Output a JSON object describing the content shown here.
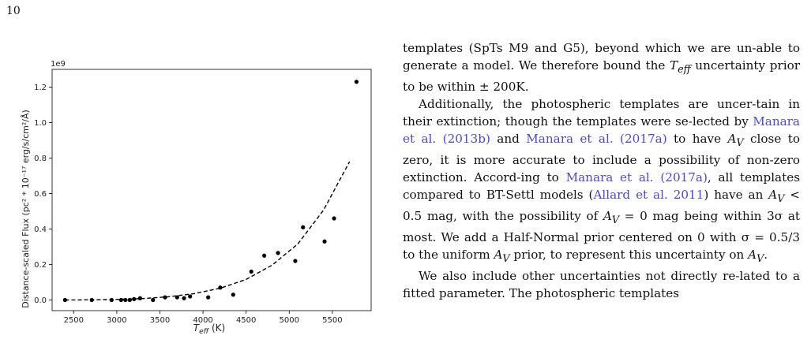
{
  "page": {
    "number": "10"
  },
  "figure": {
    "chart_data": {
      "type": "scatter",
      "title": "",
      "xlabel": "T_eff (K)",
      "ylabel": "Distance-scaled Flux (pc² * 10⁻¹⁷ erg/s/cm²/Å)",
      "y_offset_text": "1e9",
      "xlim": [
        2250,
        5950
      ],
      "ylim": [
        -0.06,
        1.3
      ],
      "xticks": [
        2500,
        3000,
        3500,
        4000,
        4500,
        5000,
        5500
      ],
      "yticks": [
        0.0,
        0.2,
        0.4,
        0.6,
        0.8,
        1.0,
        1.2
      ],
      "xtick_labels": [
        "2500",
        "3000",
        "3500",
        "4000",
        "4500",
        "5000",
        "5500"
      ],
      "ytick_labels": [
        "0.0",
        "0.2",
        "0.4",
        "0.6",
        "0.8",
        "1.0",
        "1.2"
      ],
      "grid": false,
      "series": [
        {
          "kind": "points",
          "color": "#000000",
          "x": [
            2400,
            2710,
            2940,
            3050,
            3100,
            3150,
            3200,
            3270,
            3420,
            3560,
            3700,
            3780,
            3850,
            4060,
            4200,
            4350,
            4560,
            4710,
            4870,
            5070,
            5160,
            5410,
            5520,
            5780
          ],
          "y": [
            0.0,
            0.0,
            0.0,
            0.0,
            0.0,
            0.0,
            0.005,
            0.01,
            0.0,
            0.015,
            0.015,
            0.01,
            0.02,
            0.015,
            0.07,
            0.03,
            0.16,
            0.25,
            0.265,
            0.22,
            0.41,
            0.33,
            0.46,
            1.23
          ]
        },
        {
          "kind": "fit",
          "style": "dashed",
          "color": "#000000",
          "x": [
            2400,
            2700,
            3000,
            3300,
            3600,
            3900,
            4200,
            4500,
            4800,
            5100,
            5400,
            5700
          ],
          "y": [
            0.0,
            0.001,
            0.003,
            0.008,
            0.018,
            0.036,
            0.066,
            0.116,
            0.196,
            0.316,
            0.508,
            0.78
          ]
        }
      ]
    }
  },
  "text": {
    "p1": "templates (SpTs M9 and G5), beyond which we are unable to generate a model. We therefore bound the T_eff uncertainty prior to be within ± 200K.",
    "p1_a": "templates (SpTs M9 and G5), beyond which we are un-able to generate a model. We therefore bound the ",
    "p1_teff": "T",
    "p1_teff_sub": "eff",
    "p1_b": " uncertainty prior to be within ± 200K.",
    "p2_a": "Additionally, the photospheric templates are uncer-tain in their extinction; though the templates were se-lected by ",
    "p2_cite1": "Manara et al. (2013b)",
    "p2_and": " and ",
    "p2_cite2": "Manara et al. (2017a)",
    "p2_b": " to have ",
    "p2_av1": "A",
    "p2_av1_sub": "V",
    "p2_c": " close to zero, it is more accurate to include a possibility of non-zero extinction. Accord-ing to ",
    "p2_cite3": "Manara et al. (2017a)",
    "p2_d": ", all templates compared to BT-Settl models (",
    "p2_cite4": "Allard et al. 2011",
    "p2_e": ") have an ",
    "p2_av2": "A",
    "p2_av2_sub": "V",
    "p2_f": " < 0.5 mag, with the possibility of ",
    "p2_av3": "A",
    "p2_av3_sub": "V",
    "p2_g": " = 0 mag being within 3σ at most. We add a Half-Normal prior centered on 0 with σ = 0.5/3 to the uniform ",
    "p2_av4": "A",
    "p2_av4_sub": "V",
    "p2_h": " prior, to represent this uncertainty on ",
    "p2_av5": "A",
    "p2_av5_sub": "V",
    "p2_i": ".",
    "p3": "We also include other uncertainties not directly re-lated to a fitted parameter. The photospheric templates"
  }
}
